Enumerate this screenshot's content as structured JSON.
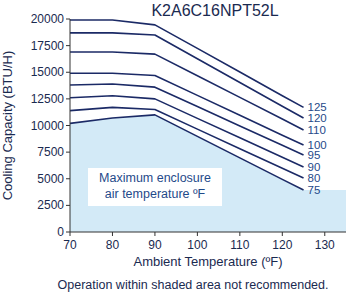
{
  "chart_data": {
    "type": "line",
    "title": "K2A6C16NPT52L",
    "x_label": "Ambient Temperature (ºF)",
    "y_label": "Cooling Capacity (BTU/H)",
    "x": [
      70,
      80,
      90,
      100,
      110,
      120,
      125
    ],
    "series": [
      {
        "name": "125",
        "color": "#1b2a66",
        "values": [
          19900,
          19900,
          19450,
          17240,
          15020,
          12800,
          11700
        ]
      },
      {
        "name": "120",
        "color": "#1b2a66",
        "values": [
          18700,
          18700,
          18500,
          16270,
          14040,
          11810,
          10700
        ]
      },
      {
        "name": "110",
        "color": "#1b2a66",
        "values": [
          16900,
          16900,
          16700,
          14670,
          12640,
          10610,
          9580
        ]
      },
      {
        "name": "100",
        "color": "#1b2a66",
        "values": [
          14900,
          14900,
          14700,
          12830,
          10960,
          9090,
          8170
        ]
      },
      {
        "name": "95",
        "color": "#1b2a66",
        "values": [
          13800,
          13900,
          13600,
          11780,
          9960,
          8140,
          7230
        ]
      },
      {
        "name": "90",
        "color": "#1b2a66",
        "values": [
          12600,
          12800,
          12500,
          10670,
          8840,
          7010,
          6100
        ]
      },
      {
        "name": "80",
        "color": "#1b2a66",
        "values": [
          11400,
          11700,
          11500,
          9660,
          7820,
          5990,
          5070
        ]
      },
      {
        "name": "75",
        "color": "#1b2a66",
        "values": [
          10200,
          10700,
          11000,
          8980,
          6960,
          4940,
          3940
        ]
      }
    ],
    "xlim": [
      70,
      135
    ],
    "xticks": [
      70,
      80,
      90,
      100,
      110,
      120,
      130
    ],
    "ylim": [
      0,
      20000
    ],
    "yticks": [
      0,
      2500,
      5000,
      7500,
      10000,
      12500,
      15000,
      17500,
      20000
    ],
    "grid": false,
    "annotations": [
      "Maximum enclosure",
      "air temperature ºF"
    ],
    "note": "Operation within shaded area not recommended."
  }
}
